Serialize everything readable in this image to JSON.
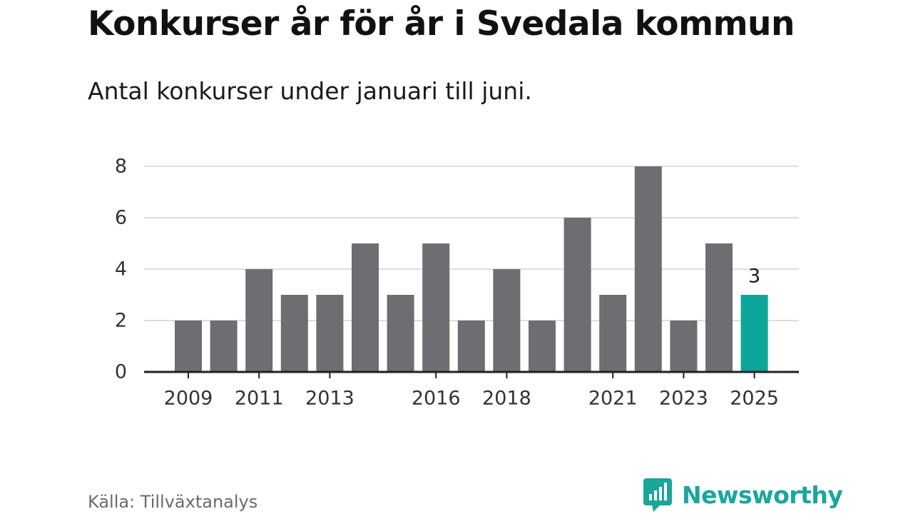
{
  "header": {
    "title": "Konkurser år för år i Svedala kommun",
    "subtitle": "Antal konkurser under januari till juni."
  },
  "footer": {
    "source": "Källa: Tillväxtanalys",
    "brand": "Newsworthy"
  },
  "colors": {
    "bar": "#6e6d72",
    "highlight": "#0ea69a",
    "grid": "#dddddd",
    "axis": "#222222",
    "brand": "#1aa79a"
  },
  "icons": {
    "logo": "newsworthy-chart-bubble-icon"
  },
  "chart_data": {
    "type": "bar",
    "title": "Konkurser år för år i Svedala kommun",
    "subtitle": "Antal konkurser under januari till juni.",
    "categories": [
      "2009",
      "2010",
      "2011",
      "2012",
      "2013",
      "2014",
      "2015",
      "2016",
      "2017",
      "2018",
      "2019",
      "2020",
      "2021",
      "2022",
      "2023",
      "2024",
      "2025"
    ],
    "values": [
      2,
      2,
      4,
      3,
      3,
      5,
      3,
      5,
      2,
      4,
      2,
      6,
      3,
      8,
      2,
      5,
      3
    ],
    "highlight_index": 16,
    "highlight_label": "3",
    "x_tick_labels": [
      "2009",
      "2011",
      "2013",
      "2016",
      "2018",
      "2021",
      "2023",
      "2025"
    ],
    "y_ticks": [
      0,
      2,
      4,
      6,
      8
    ],
    "ylim": [
      0,
      8
    ],
    "grid": true,
    "legend": "none",
    "xlabel": "",
    "ylabel": ""
  }
}
